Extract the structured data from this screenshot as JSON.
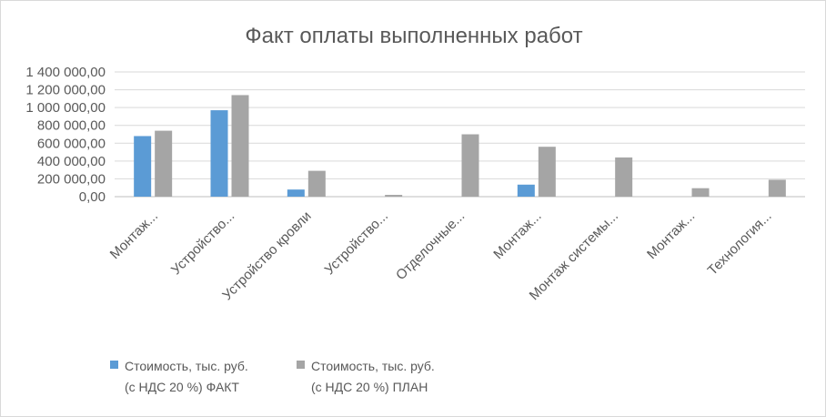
{
  "chart_data": {
    "type": "bar",
    "title": "Факт оплаты выполненных работ",
    "xlabel": "",
    "ylabel": "",
    "categories": [
      "Монтаж...",
      "Устройство...",
      "Устройство кровли",
      "Устройство...",
      "Отделочные...",
      "Монтаж...",
      "Монтаж системы...",
      "Монтаж...",
      "Технология..."
    ],
    "series": [
      {
        "name": "Стоимость, тыс. руб. (с НДС 20 %) ФАКТ",
        "name_lines": [
          "Стоимость, тыс. руб.",
          "(с НДС 20 %) ФАКТ"
        ],
        "color": "#5b9bd5",
        "values": [
          680000,
          970000,
          80000,
          0,
          0,
          135000,
          0,
          0,
          0
        ]
      },
      {
        "name": "Стоимость, тыс. руб. (с НДС 20 %) ПЛАН",
        "name_lines": [
          "Стоимость, тыс. руб.",
          "(с НДС 20 %) ПЛАН"
        ],
        "color": "#a5a5a5",
        "values": [
          740000,
          1140000,
          290000,
          20000,
          700000,
          560000,
          440000,
          95000,
          190000
        ]
      }
    ],
    "ylim": [
      0,
      1400000
    ],
    "yticks": [
      0,
      200000,
      400000,
      600000,
      800000,
      1000000,
      1200000,
      1400000
    ],
    "ytick_labels": [
      "0,00",
      "200 000,00",
      "400 000,00",
      "600 000,00",
      "800 000,00",
      "1 000 000,00",
      "1 200 000,00",
      "1 400 000,00"
    ],
    "grid": true,
    "legend_position": "bottom"
  }
}
